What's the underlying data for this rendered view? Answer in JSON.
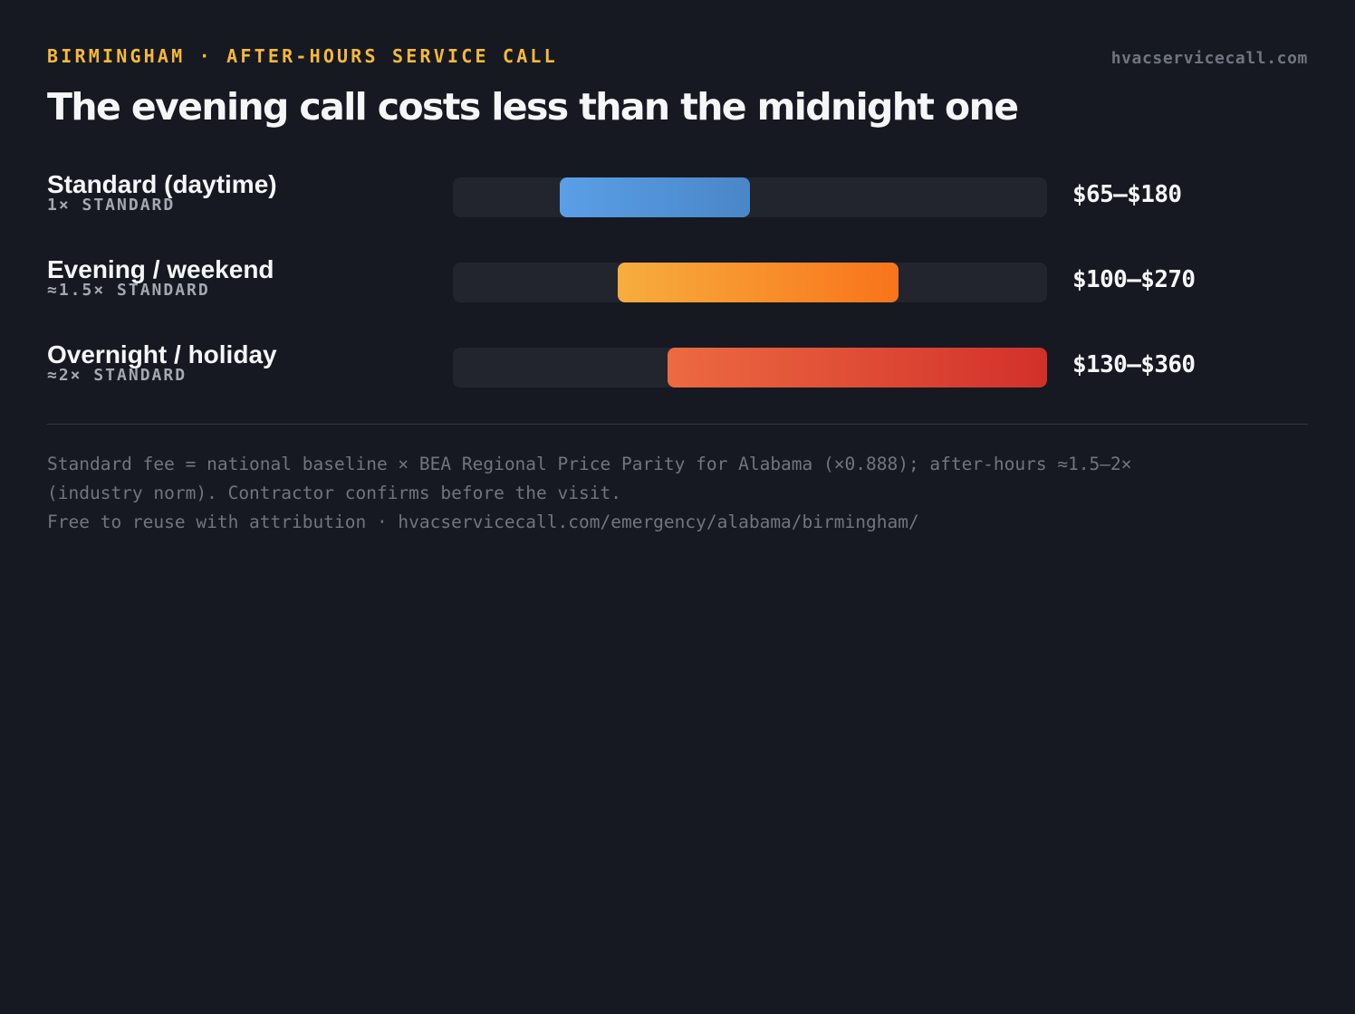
{
  "header": {
    "eyebrow": "BIRMINGHAM · AFTER-HOURS SERVICE CALL",
    "site": "hvacservicecall.com",
    "title": "The evening call costs less than the midnight one"
  },
  "chart_data": {
    "type": "bar",
    "orientation": "horizontal",
    "subtype": "floating-range",
    "categories": [
      "Standard (daytime)",
      "Evening / weekend",
      "Overnight / holiday"
    ],
    "multipliers": [
      "1× STANDARD",
      "≈1.5× STANDARD",
      "≈2× STANDARD"
    ],
    "ranges": [
      [
        65,
        180
      ],
      [
        100,
        270
      ],
      [
        130,
        360
      ]
    ],
    "range_labels": [
      "$65–$180",
      "$100–$270",
      "$130–$360"
    ],
    "xlim": [
      0,
      360
    ],
    "colors": [
      [
        "#5a9fe6",
        "#4a86c8"
      ],
      [
        "#f7ad3e",
        "#f8741a"
      ],
      [
        "#ec6a41",
        "#d2302a"
      ]
    ],
    "grid": false,
    "legend": "none"
  },
  "footer": {
    "methodology_line1": "Standard fee = national baseline × BEA Regional Price Parity for Alabama (×0.888); after-hours ≈1.5–2×",
    "methodology_line2": "(industry norm). Contractor confirms before the visit.",
    "attribution": "Free to reuse with attribution · hvacservicecall.com/emergency/alabama/birmingham/"
  },
  "colors": {
    "background": "#161922",
    "accent": "#f6b938",
    "track": "#22252d"
  }
}
